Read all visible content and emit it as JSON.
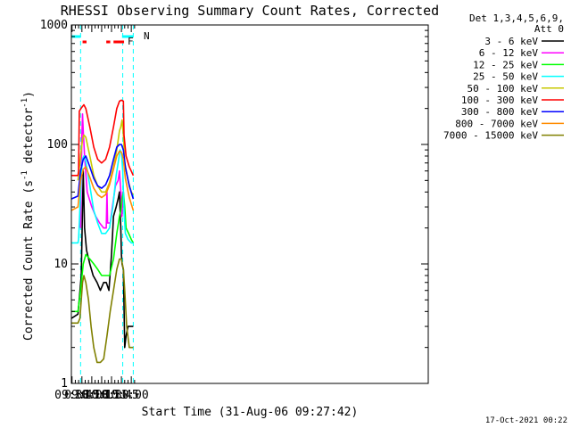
{
  "chart_data": {
    "type": "line",
    "title": "RHESSI Observing Summary Count Rates, Corrected",
    "xlabel": "Start Time (31-Aug-06 09:27:42)",
    "ylabel_main": "Corrected Count Rate (s",
    "ylabel_sup1": "-1",
    "ylabel_mid": " detector",
    "ylabel_sup2": "-1",
    "ylabel_end": ")",
    "y_scale": "log",
    "ylim": [
      1,
      1000
    ],
    "xlim_minutes": [
      569,
      1111
    ],
    "x_ticks": [
      {
        "label": "09:30",
        "m": 570
      },
      {
        "label": "09:45",
        "m": 585
      },
      {
        "label": "10:00",
        "m": 600
      },
      {
        "label": "10:15",
        "m": 615
      },
      {
        "label": "10:30",
        "m": 630
      },
      {
        "label": "10:45",
        "m": 645
      },
      {
        "label": "11:00",
        "m": 660
      }
    ],
    "y_ticks": [
      {
        "label": "1",
        "v": 1
      },
      {
        "label": "10",
        "v": 10
      },
      {
        "label": "100",
        "v": 100
      },
      {
        "label": "1000",
        "v": 1000
      }
    ],
    "legend_header": [
      "Det 1,3,4,5,6,9,",
      "Att 0"
    ],
    "legend_placement": "right",
    "series": [
      {
        "name": "3 - 6 keV",
        "color": "#000000",
        "points": [
          [
            569,
            3.5
          ],
          [
            579,
            3.8
          ],
          [
            584,
            8
          ],
          [
            586,
            30
          ],
          [
            587,
            60
          ],
          [
            589,
            20
          ],
          [
            592,
            13
          ],
          [
            597,
            10
          ],
          [
            602,
            8
          ],
          [
            608,
            7
          ],
          [
            613,
            6
          ],
          [
            618,
            7
          ],
          [
            622,
            7
          ],
          [
            626,
            6
          ],
          [
            630,
            12
          ],
          [
            633,
            25
          ],
          [
            637,
            30
          ],
          [
            640,
            35
          ],
          [
            642,
            40
          ],
          [
            644,
            20
          ],
          [
            645,
            12
          ],
          [
            646,
            10
          ],
          [
            648,
            9
          ],
          [
            650,
            2
          ],
          [
            652,
            2.5
          ],
          [
            655,
            3
          ],
          [
            662,
            3
          ],
          [
            663,
            3
          ]
        ]
      },
      {
        "name": "6 - 12 keV",
        "color": "#ff00ff",
        "points": [
          [
            583,
            20
          ],
          [
            585,
            120
          ],
          [
            586,
            180
          ],
          [
            587,
            130
          ],
          [
            589,
            80
          ],
          [
            593,
            40
          ],
          [
            600,
            30
          ],
          [
            606,
            25
          ],
          [
            612,
            22
          ],
          [
            618,
            20
          ],
          [
            622,
            20
          ],
          [
            623,
            40
          ],
          [
            624,
            22
          ],
          [
            628,
            22
          ],
          [
            632,
            32
          ],
          [
            636,
            45
          ],
          [
            640,
            50
          ],
          [
            642,
            60
          ],
          [
            644,
            40
          ],
          [
            646,
            25
          ],
          [
            647,
            40
          ],
          [
            648,
            30
          ],
          [
            650,
            30
          ]
        ]
      },
      {
        "name": "12 - 25 keV",
        "color": "#00ff00",
        "points": [
          [
            569,
            4
          ],
          [
            579,
            4
          ],
          [
            583,
            6
          ],
          [
            587,
            10
          ],
          [
            591,
            12
          ],
          [
            597,
            11
          ],
          [
            603,
            10
          ],
          [
            609,
            9
          ],
          [
            615,
            8
          ],
          [
            621,
            8
          ],
          [
            627,
            8
          ],
          [
            633,
            11
          ],
          [
            638,
            18
          ],
          [
            642,
            25
          ],
          [
            644,
            28
          ],
          [
            646,
            35
          ],
          [
            648,
            40
          ],
          [
            650,
            30
          ],
          [
            652,
            20
          ],
          [
            656,
            18
          ],
          [
            660,
            16
          ],
          [
            663,
            15
          ]
        ]
      },
      {
        "name": "25 - 50 keV",
        "color": "#00ffff",
        "points": [
          [
            569,
            15
          ],
          [
            579,
            15
          ],
          [
            580,
            16
          ],
          [
            584,
            55
          ],
          [
            586,
            75
          ],
          [
            588,
            80
          ],
          [
            591,
            72
          ],
          [
            597,
            45
          ],
          [
            603,
            28
          ],
          [
            609,
            22
          ],
          [
            615,
            18
          ],
          [
            621,
            18
          ],
          [
            627,
            20
          ],
          [
            632,
            30
          ],
          [
            637,
            55
          ],
          [
            640,
            70
          ],
          [
            643,
            90
          ],
          [
            645,
            85
          ],
          [
            647,
            60
          ],
          [
            649,
            28
          ],
          [
            651,
            18
          ],
          [
            655,
            16
          ],
          [
            660,
            15
          ],
          [
            663,
            15
          ]
        ]
      },
      {
        "name": "50 - 100 keV",
        "color": "#c8c800",
        "points": [
          [
            579,
            50
          ],
          [
            583,
            80
          ],
          [
            586,
            110
          ],
          [
            588,
            120
          ],
          [
            591,
            115
          ],
          [
            597,
            80
          ],
          [
            603,
            55
          ],
          [
            609,
            45
          ],
          [
            615,
            40
          ],
          [
            621,
            40
          ],
          [
            627,
            48
          ],
          [
            633,
            65
          ],
          [
            638,
            90
          ],
          [
            642,
            130
          ],
          [
            644,
            140
          ],
          [
            646,
            160
          ],
          [
            648,
            120
          ],
          [
            650,
            70
          ],
          [
            655,
            50
          ],
          [
            660,
            40
          ],
          [
            663,
            38
          ]
        ]
      },
      {
        "name": "100 - 300 keV",
        "color": "#ff0000",
        "points": [
          [
            569,
            55
          ],
          [
            579,
            55
          ],
          [
            580,
            60
          ],
          [
            581,
            190
          ],
          [
            585,
            205
          ],
          [
            588,
            215
          ],
          [
            591,
            200
          ],
          [
            597,
            140
          ],
          [
            603,
            95
          ],
          [
            609,
            75
          ],
          [
            615,
            70
          ],
          [
            621,
            75
          ],
          [
            627,
            95
          ],
          [
            633,
            140
          ],
          [
            638,
            200
          ],
          [
            642,
            230
          ],
          [
            645,
            235
          ],
          [
            648,
            230
          ],
          [
            649,
            120
          ],
          [
            652,
            80
          ],
          [
            657,
            65
          ],
          [
            663,
            55
          ]
        ]
      },
      {
        "name": "300 - 800 keV",
        "color": "#0000ff",
        "points": [
          [
            569,
            35
          ],
          [
            579,
            37
          ],
          [
            583,
            60
          ],
          [
            587,
            75
          ],
          [
            591,
            80
          ],
          [
            597,
            65
          ],
          [
            603,
            52
          ],
          [
            609,
            45
          ],
          [
            615,
            43
          ],
          [
            621,
            46
          ],
          [
            627,
            55
          ],
          [
            633,
            75
          ],
          [
            638,
            95
          ],
          [
            642,
            100
          ],
          [
            645,
            100
          ],
          [
            648,
            90
          ],
          [
            651,
            65
          ],
          [
            657,
            45
          ],
          [
            663,
            35
          ]
        ]
      },
      {
        "name": "800 - 7000 keV",
        "color": "#ff8c00",
        "points": [
          [
            569,
            28
          ],
          [
            579,
            30
          ],
          [
            583,
            50
          ],
          [
            587,
            62
          ],
          [
            591,
            65
          ],
          [
            597,
            53
          ],
          [
            603,
            43
          ],
          [
            609,
            38
          ],
          [
            615,
            36
          ],
          [
            621,
            38
          ],
          [
            627,
            46
          ],
          [
            633,
            62
          ],
          [
            638,
            80
          ],
          [
            642,
            88
          ],
          [
            645,
            86
          ],
          [
            648,
            75
          ],
          [
            651,
            52
          ],
          [
            657,
            36
          ],
          [
            663,
            28
          ]
        ]
      },
      {
        "name": "7000 - 15000 keV",
        "color": "#808000",
        "points": [
          [
            569,
            3.2
          ],
          [
            579,
            3.2
          ],
          [
            582,
            3.5
          ],
          [
            584,
            5
          ],
          [
            586,
            7
          ],
          [
            588,
            8
          ],
          [
            591,
            7
          ],
          [
            595,
            5
          ],
          [
            599,
            3
          ],
          [
            603,
            2
          ],
          [
            608,
            1.5
          ],
          [
            613,
            1.5
          ],
          [
            618,
            1.6
          ],
          [
            623,
            2.5
          ],
          [
            628,
            4
          ],
          [
            633,
            6
          ],
          [
            638,
            9
          ],
          [
            642,
            11
          ],
          [
            645,
            11
          ],
          [
            648,
            9
          ],
          [
            650,
            6
          ],
          [
            653,
            3
          ],
          [
            657,
            2
          ],
          [
            663,
            2
          ]
        ]
      }
    ],
    "annotations": [
      {
        "text": "N",
        "color": "#00ffff"
      },
      {
        "text": "F",
        "color": "#ff0000"
      }
    ],
    "flag_bars": [
      {
        "name": "night",
        "color": "#00ffff",
        "ranges": [
          [
            569,
            583
          ],
          [
            646,
            663
          ]
        ]
      },
      {
        "name": "flare",
        "color": "#ff0000",
        "ranges": [
          [
            586,
            592
          ],
          [
            622,
            628
          ],
          [
            633,
            649
          ]
        ]
      }
    ],
    "vertical_markers": [
      {
        "m": 583,
        "color": "#00ffff"
      },
      {
        "m": 647,
        "color": "#00ffff"
      },
      {
        "m": 663,
        "color": "#00ffff"
      }
    ],
    "footer_date": "17-Oct-2021 00:22"
  }
}
